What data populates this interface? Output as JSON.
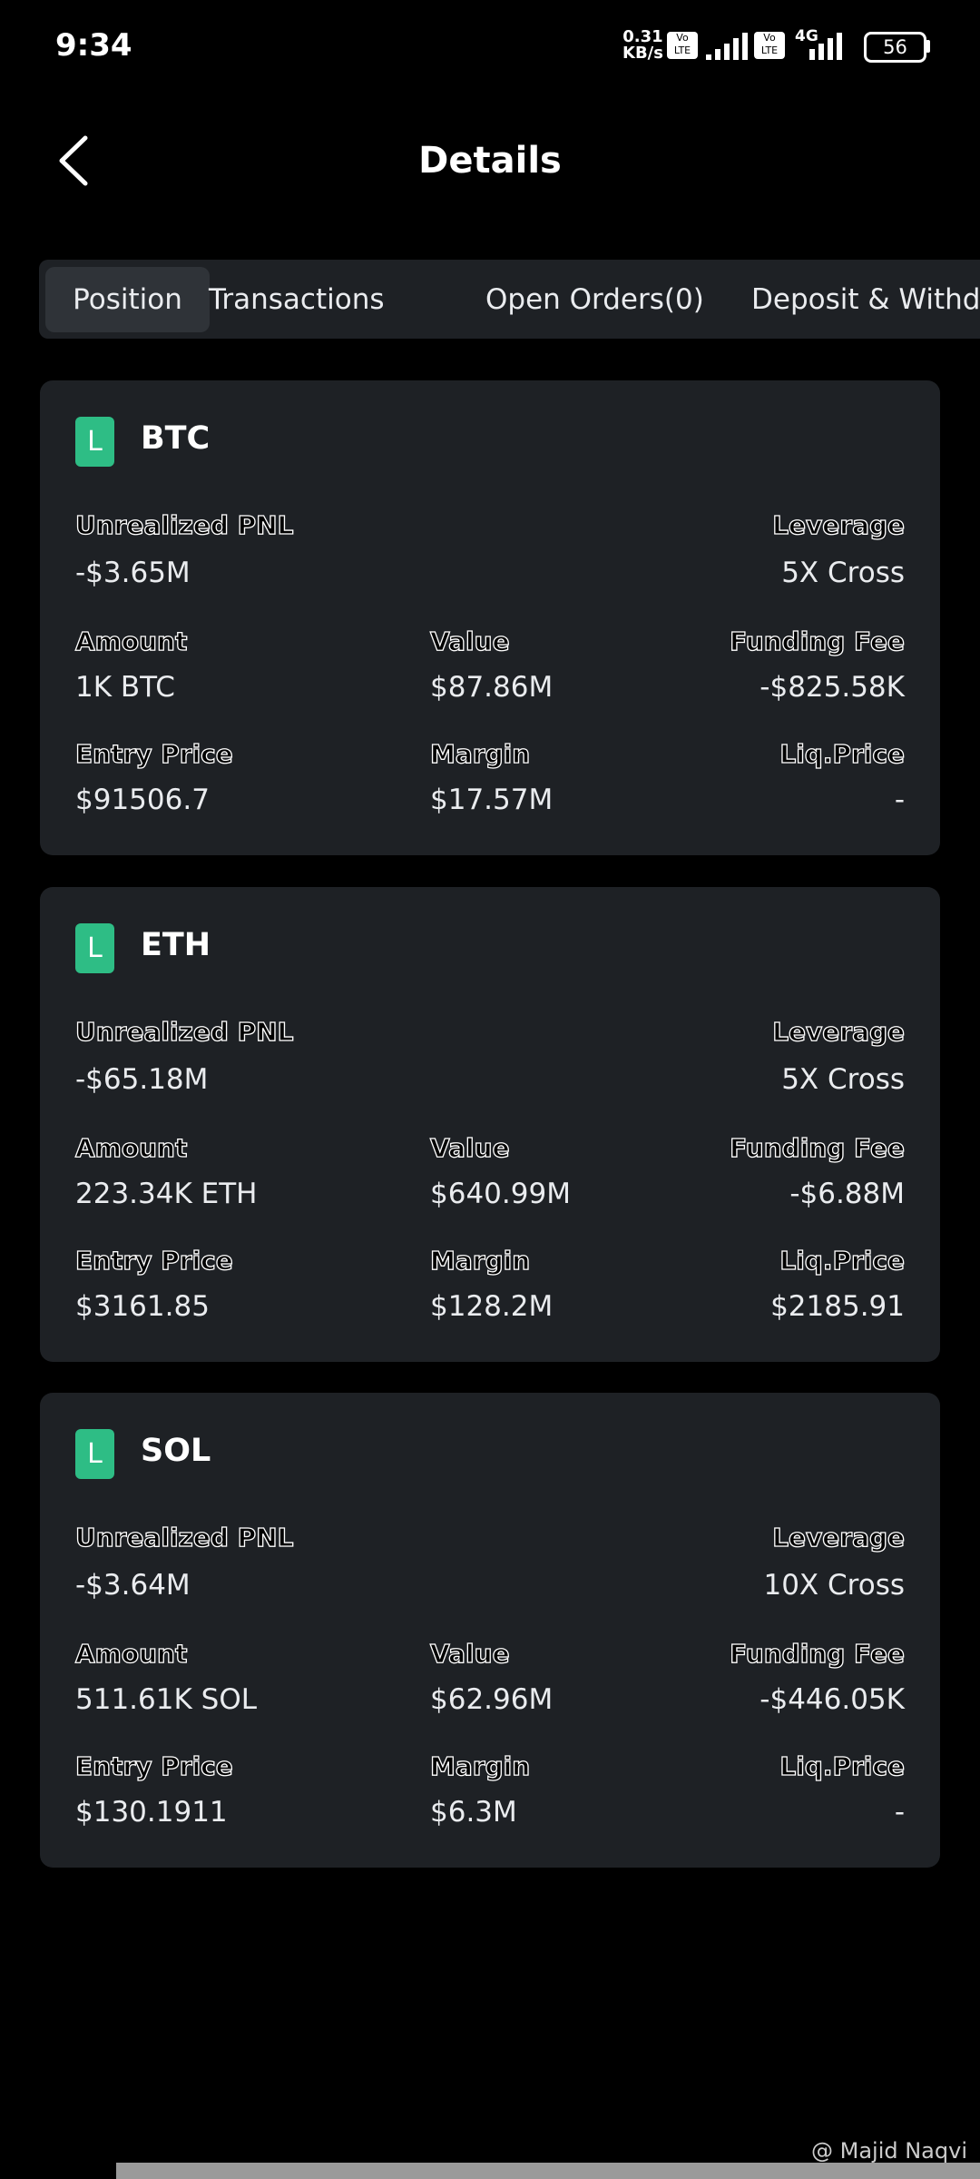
{
  "status_bar": {
    "time": "9:34",
    "net_speed": "0.31",
    "net_unit": "KB/s",
    "volte": "Vo LTE",
    "network": "4G",
    "battery": "56"
  },
  "header": {
    "title": "Details"
  },
  "tabs": [
    "Position",
    "Transactions",
    "Open Orders(0)",
    "Deposit & Withdraw"
  ],
  "positions": [
    {
      "side": "L",
      "symbol": "BTC",
      "rows": [
        [
          {
            "label": "Unrealized PNL",
            "value": "-$3.65M"
          },
          {
            "label": "Leverage",
            "value": "5X Cross"
          }
        ],
        [
          {
            "label": "Amount",
            "value": "1K BTC"
          },
          {
            "label": "Value",
            "value": "$87.86M"
          },
          {
            "label": "Funding Fee",
            "value": "-$825.58K"
          }
        ],
        [
          {
            "label": "Entry Price",
            "value": "$91506.7"
          },
          {
            "label": "Margin",
            "value": "$17.57M"
          },
          {
            "label": "Liq.Price",
            "value": "-"
          }
        ]
      ]
    },
    {
      "side": "L",
      "symbol": "ETH",
      "rows": [
        [
          {
            "label": "Unrealized PNL",
            "value": "-$65.18M"
          },
          {
            "label": "Leverage",
            "value": "5X Cross"
          }
        ],
        [
          {
            "label": "Amount",
            "value": "223.34K ETH"
          },
          {
            "label": "Value",
            "value": "$640.99M"
          },
          {
            "label": "Funding Fee",
            "value": "-$6.88M"
          }
        ],
        [
          {
            "label": "Entry Price",
            "value": "$3161.85"
          },
          {
            "label": "Margin",
            "value": "$128.2M"
          },
          {
            "label": "Liq.Price",
            "value": "$2185.91"
          }
        ]
      ]
    },
    {
      "side": "L",
      "symbol": "SOL",
      "rows": [
        [
          {
            "label": "Unrealized PNL",
            "value": "-$3.64M"
          },
          {
            "label": "Leverage",
            "value": "10X Cross"
          }
        ],
        [
          {
            "label": "Amount",
            "value": "511.61K SOL"
          },
          {
            "label": "Value",
            "value": "$62.96M"
          },
          {
            "label": "Funding Fee",
            "value": "-$446.05K"
          }
        ],
        [
          {
            "label": "Entry Price",
            "value": "$130.1911"
          },
          {
            "label": "Margin",
            "value": "$6.3M"
          },
          {
            "label": "Liq.Price",
            "value": "-"
          }
        ]
      ]
    }
  ],
  "watermark": "@ Majid Naqvi"
}
